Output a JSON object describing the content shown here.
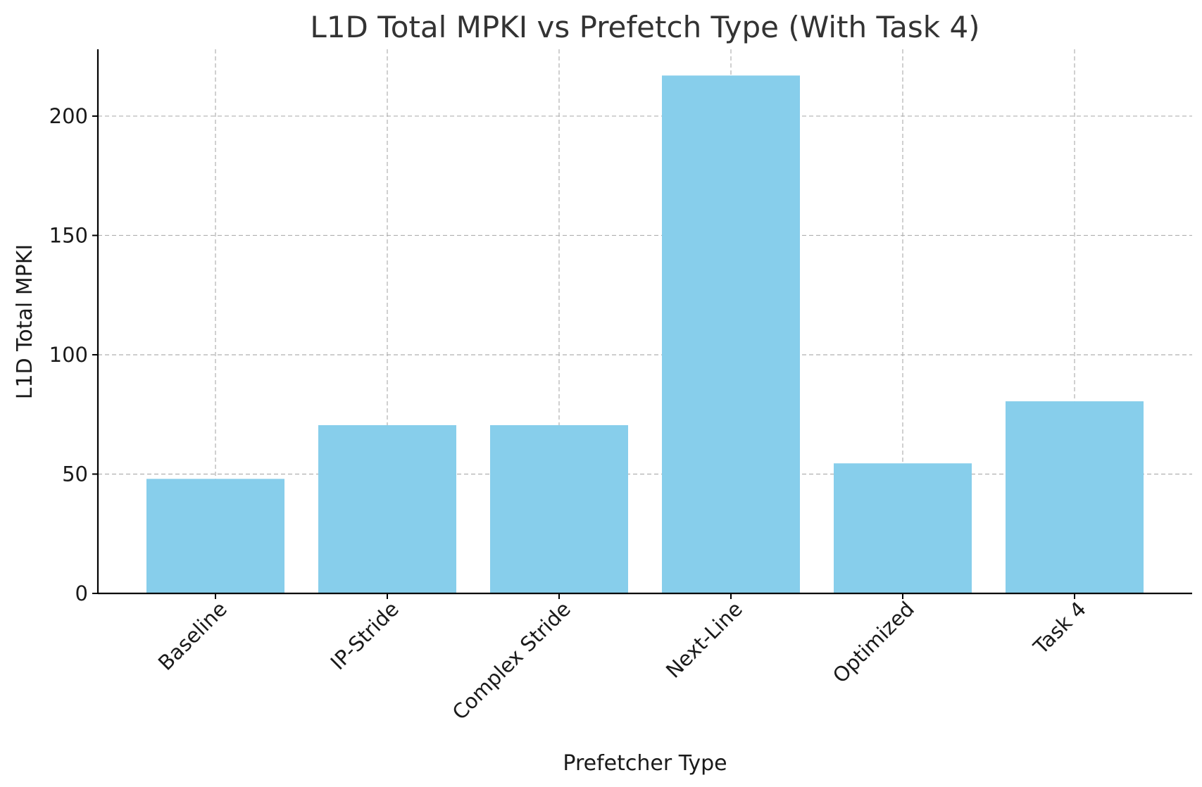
{
  "chart_data": {
    "type": "bar",
    "title": "L1D Total MPKI vs Prefetch Type (With Task 4)",
    "xlabel": "Prefetcher Type",
    "ylabel": "L1D Total MPKI",
    "categories": [
      "Baseline",
      "IP-Stride",
      "Complex Stride",
      "Next-Line",
      "Optimized",
      "Task 4"
    ],
    "values": [
      48,
      70.5,
      70.5,
      217,
      54.5,
      80.5
    ],
    "ylim": [
      0,
      228
    ],
    "yticks": [
      "0",
      "50",
      "100",
      "150",
      "200"
    ],
    "grid": true,
    "bar_color": "#87CEEB"
  }
}
